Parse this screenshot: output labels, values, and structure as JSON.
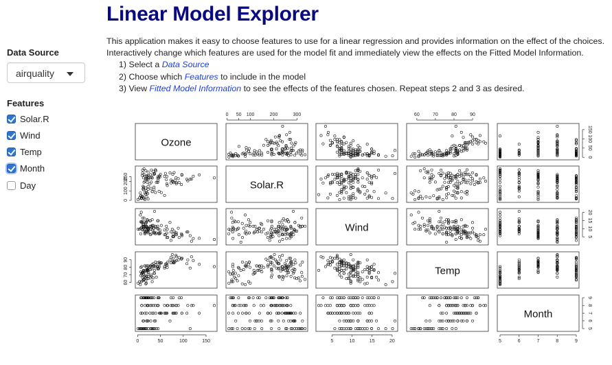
{
  "app": {
    "title": "Linear Model Explorer"
  },
  "intro": {
    "line1": "This application makes it easy to choose features to use for a linear regression and provides information on the effect of the choices.",
    "line2": "Interactively change which features are used for the model fit and immediately view the effects on the Fitted Model Information.",
    "steps": [
      {
        "prefix": "1) Select a ",
        "emph": "Data Source",
        "suffix": ""
      },
      {
        "prefix": "2) Choose which ",
        "emph": "Features",
        "suffix": " to include in the model"
      },
      {
        "prefix": "3) View ",
        "emph": "Fitted Model Information",
        "suffix": " to see the effects of the features chosen. Repeat steps 2 and 3 as desired."
      }
    ]
  },
  "sidebar": {
    "data_source_label": "Data Source",
    "data_source_value": "airquality",
    "features_label": "Features",
    "features": [
      {
        "label": "Solar.R",
        "checked": true
      },
      {
        "label": "Wind",
        "checked": true
      },
      {
        "label": "Temp",
        "checked": true
      },
      {
        "label": "Month",
        "checked": true
      },
      {
        "label": "Day",
        "checked": false
      }
    ]
  },
  "chart_data": {
    "type": "scatter",
    "title": "",
    "variables": [
      "Ozone",
      "Solar.R",
      "Wind",
      "Temp",
      "Month"
    ],
    "ranges": {
      "Ozone": [
        1,
        168
      ],
      "Solar.R": [
        7,
        334
      ],
      "Wind": [
        1.7,
        20.7
      ],
      "Temp": [
        56,
        97
      ],
      "Month": [
        5,
        9
      ]
    },
    "axis_ticks": {
      "top": [
        {
          "column": "Solar.R",
          "ticks": [
            "0",
            "50",
            "100",
            "200",
            "300"
          ]
        },
        {
          "column": "Temp",
          "ticks": [
            "60",
            "70",
            "80",
            "90"
          ]
        }
      ],
      "bottom": [
        {
          "column": "Ozone",
          "ticks": [
            "0",
            "50",
            "100",
            "150"
          ]
        },
        {
          "column": "Wind",
          "ticks": [
            "5",
            "10",
            "15",
            "20"
          ]
        },
        {
          "column": "Month",
          "ticks": [
            "5",
            "6",
            "7",
            "8",
            "9"
          ]
        }
      ],
      "left": [
        {
          "row": "Solar.R",
          "ticks": [
            "0",
            "100",
            "200",
            "250"
          ]
        },
        {
          "row": "Temp",
          "ticks": [
            "60",
            "70",
            "80",
            "90"
          ]
        }
      ],
      "right": [
        {
          "row": "Ozone",
          "ticks": [
            "0",
            "50",
            "100",
            "150"
          ]
        },
        {
          "row": "Wind",
          "ticks": [
            "5",
            "10",
            "15",
            "20"
          ]
        },
        {
          "row": "Month",
          "ticks": [
            "5",
            "6",
            "7",
            "8",
            "9"
          ]
        }
      ]
    },
    "observations": [
      [
        41,
        190,
        7.4,
        67,
        5
      ],
      [
        36,
        118,
        8.0,
        72,
        5
      ],
      [
        12,
        149,
        12.6,
        74,
        5
      ],
      [
        18,
        313,
        11.5,
        62,
        5
      ],
      [
        28,
        null,
        14.9,
        66,
        5
      ],
      [
        23,
        299,
        8.6,
        65,
        5
      ],
      [
        19,
        99,
        13.8,
        59,
        5
      ],
      [
        8,
        19,
        20.1,
        61,
        5
      ],
      [
        7,
        null,
        6.9,
        74,
        5
      ],
      [
        16,
        256,
        9.7,
        69,
        5
      ],
      [
        11,
        290,
        9.2,
        66,
        5
      ],
      [
        14,
        274,
        10.9,
        68,
        5
      ],
      [
        18,
        65,
        13.2,
        58,
        5
      ],
      [
        14,
        334,
        11.5,
        64,
        5
      ],
      [
        34,
        307,
        12.0,
        66,
        5
      ],
      [
        6,
        78,
        18.4,
        57,
        5
      ],
      [
        30,
        322,
        11.5,
        68,
        5
      ],
      [
        11,
        44,
        9.7,
        62,
        5
      ],
      [
        1,
        8,
        9.7,
        59,
        5
      ],
      [
        11,
        320,
        16.6,
        73,
        5
      ],
      [
        4,
        25,
        9.7,
        61,
        5
      ],
      [
        32,
        92,
        12.0,
        61,
        5
      ],
      [
        45,
        252,
        14.9,
        81,
        5
      ],
      [
        115,
        223,
        5.7,
        79,
        5
      ],
      [
        37,
        279,
        7.4,
        76,
        5
      ],
      [
        29,
        127,
        9.7,
        82,
        6
      ],
      [
        71,
        291,
        13.8,
        90,
        6
      ],
      [
        39,
        323,
        11.5,
        87,
        6
      ],
      [
        23,
        148,
        8.0,
        82,
        6
      ],
      [
        21,
        191,
        14.9,
        77,
        6
      ],
      [
        37,
        284,
        20.7,
        72,
        6
      ],
      [
        20,
        37,
        9.2,
        65,
        6
      ],
      [
        12,
        120,
        11.5,
        73,
        6
      ],
      [
        13,
        137,
        10.3,
        76,
        6
      ],
      [
        135,
        269,
        4.1,
        84,
        7
      ],
      [
        49,
        248,
        9.2,
        85,
        7
      ],
      [
        32,
        236,
        9.2,
        81,
        7
      ],
      [
        64,
        175,
        4.6,
        83,
        7
      ],
      [
        40,
        314,
        10.9,
        83,
        7
      ],
      [
        77,
        276,
        5.1,
        88,
        7
      ],
      [
        97,
        267,
        6.3,
        92,
        7
      ],
      [
        97,
        272,
        5.7,
        92,
        7
      ],
      [
        85,
        175,
        7.4,
        89,
        7
      ],
      [
        10,
        264,
        14.3,
        73,
        7
      ],
      [
        27,
        175,
        14.9,
        81,
        7
      ],
      [
        7,
        48,
        14.3,
        80,
        7
      ],
      [
        48,
        260,
        6.9,
        81,
        7
      ],
      [
        35,
        274,
        10.3,
        82,
        7
      ],
      [
        61,
        285,
        6.3,
        84,
        7
      ],
      [
        79,
        187,
        5.1,
        87,
        7
      ],
      [
        63,
        220,
        11.5,
        85,
        7
      ],
      [
        16,
        7,
        6.9,
        74,
        7
      ],
      [
        80,
        294,
        8.6,
        86,
        7
      ],
      [
        108,
        223,
        8.0,
        85,
        7
      ],
      [
        20,
        81,
        8.6,
        82,
        7
      ],
      [
        52,
        82,
        12.0,
        86,
        7
      ],
      [
        82,
        213,
        7.4,
        88,
        7
      ],
      [
        50,
        275,
        7.4,
        86,
        7
      ],
      [
        64,
        253,
        7.4,
        83,
        7
      ],
      [
        59,
        254,
        9.2,
        81,
        7
      ],
      [
        39,
        83,
        6.9,
        81,
        8
      ],
      [
        9,
        24,
        13.8,
        81,
        8
      ],
      [
        16,
        77,
        7.4,
        82,
        8
      ],
      [
        78,
        null,
        6.9,
        86,
        8
      ],
      [
        35,
        null,
        7.4,
        85,
        8
      ],
      [
        66,
        null,
        4.6,
        87,
        8
      ],
      [
        122,
        255,
        4.0,
        89,
        8
      ],
      [
        89,
        229,
        10.3,
        90,
        8
      ],
      [
        110,
        207,
        8.0,
        90,
        8
      ],
      [
        44,
        192,
        11.5,
        86,
        8
      ],
      [
        28,
        273,
        11.5,
        82,
        8
      ],
      [
        65,
        157,
        9.7,
        80,
        8
      ],
      [
        22,
        71,
        10.3,
        77,
        8
      ],
      [
        59,
        51,
        6.3,
        79,
        8
      ],
      [
        23,
        115,
        7.4,
        76,
        8
      ],
      [
        31,
        244,
        10.9,
        78,
        8
      ],
      [
        44,
        190,
        10.3,
        78,
        8
      ],
      [
        21,
        259,
        15.5,
        77,
        8
      ],
      [
        9,
        36,
        14.3,
        72,
        8
      ],
      [
        45,
        212,
        9.7,
        79,
        8
      ],
      [
        168,
        238,
        3.4,
        81,
        8
      ],
      [
        73,
        215,
        8.0,
        86,
        8
      ],
      [
        76,
        203,
        9.7,
        97,
        8
      ],
      [
        118,
        225,
        2.3,
        94,
        8
      ],
      [
        84,
        237,
        6.3,
        96,
        8
      ],
      [
        85,
        188,
        6.3,
        94,
        8
      ],
      [
        96,
        167,
        6.9,
        91,
        9
      ],
      [
        78,
        197,
        5.1,
        92,
        9
      ],
      [
        73,
        183,
        2.8,
        93,
        9
      ],
      [
        91,
        189,
        4.6,
        93,
        9
      ],
      [
        47,
        95,
        7.4,
        87,
        9
      ],
      [
        32,
        92,
        15.5,
        84,
        9
      ],
      [
        20,
        252,
        10.9,
        80,
        9
      ],
      [
        23,
        220,
        10.3,
        78,
        9
      ],
      [
        21,
        230,
        10.9,
        75,
        9
      ],
      [
        24,
        259,
        9.7,
        73,
        9
      ],
      [
        44,
        236,
        14.9,
        81,
        9
      ],
      [
        21,
        259,
        15.5,
        76,
        9
      ],
      [
        28,
        238,
        6.3,
        77,
        9
      ],
      [
        9,
        24,
        10.9,
        71,
        9
      ],
      [
        13,
        112,
        11.5,
        71,
        9
      ],
      [
        46,
        237,
        6.9,
        78,
        9
      ],
      [
        18,
        224,
        13.8,
        67,
        9
      ],
      [
        13,
        27,
        10.3,
        76,
        9
      ],
      [
        24,
        238,
        10.3,
        68,
        9
      ],
      [
        16,
        201,
        8.0,
        82,
        9
      ],
      [
        13,
        238,
        12.6,
        64,
        9
      ],
      [
        23,
        14,
        9.2,
        71,
        9
      ],
      [
        36,
        139,
        10.3,
        81,
        9
      ],
      [
        7,
        49,
        10.3,
        69,
        9
      ],
      [
        14,
        20,
        16.6,
        63,
        9
      ],
      [
        30,
        193,
        6.9,
        70,
        9
      ],
      [
        14,
        191,
        14.3,
        75,
        9
      ],
      [
        18,
        131,
        8.0,
        76,
        9
      ],
      [
        20,
        223,
        11.5,
        68,
        9
      ],
      [
        null,
        286,
        8.6,
        78,
        6
      ],
      [
        null,
        287,
        9.7,
        74,
        6
      ],
      [
        null,
        242,
        16.1,
        67,
        6
      ],
      [
        null,
        186,
        9.2,
        84,
        6
      ],
      [
        null,
        220,
        8.6,
        85,
        6
      ],
      [
        null,
        264,
        14.3,
        79,
        6
      ],
      [
        null,
        127,
        9.7,
        82,
        6
      ],
      [
        null,
        273,
        6.9,
        87,
        6
      ],
      [
        null,
        291,
        13.8,
        77,
        6
      ],
      [
        null,
        98,
        11.5,
        80,
        6
      ],
      [
        null,
        66,
        4.6,
        87,
        7
      ],
      [
        null,
        250,
        6.3,
        76,
        7
      ],
      [
        null,
        95,
        7.4,
        87,
        7
      ],
      [
        null,
        139,
        8.6,
        82,
        7
      ],
      [
        null,
        25,
        4.0,
        84,
        7
      ],
      [
        null,
        31,
        14.9,
        67,
        8
      ],
      [
        null,
        145,
        13.2,
        77,
        8
      ],
      [
        null,
        24,
        8.0,
        72,
        8
      ],
      [
        null,
        59,
        1.7,
        76,
        8
      ],
      [
        null,
        258,
        9.7,
        81,
        8
      ]
    ]
  }
}
